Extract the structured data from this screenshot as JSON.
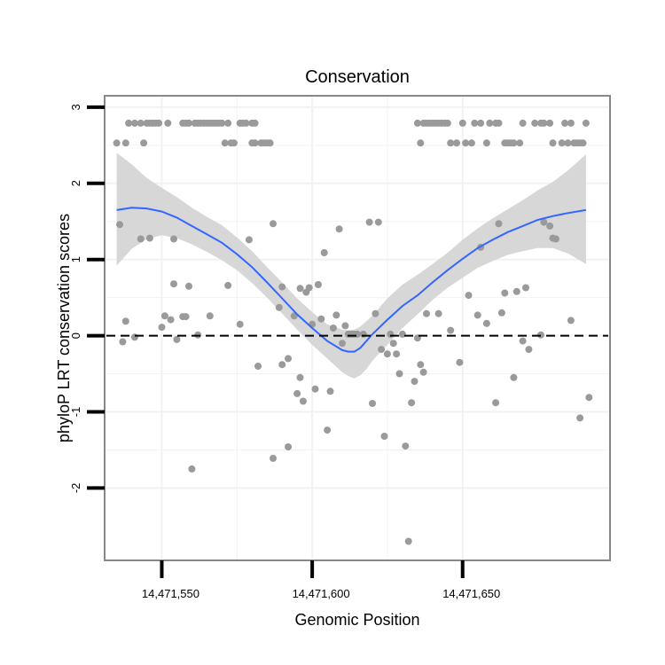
{
  "chart_data": {
    "type": "scatter",
    "title": "Conservation",
    "xlabel": "Genomic Position",
    "ylabel": "phyloP LRT conservation scores",
    "xlim": [
      14471531,
      14471699
    ],
    "ylim": [
      -2.95,
      3.15
    ],
    "x_ticks": [
      {
        "value": 14471550,
        "label": "14,471,550"
      },
      {
        "value": 14471600,
        "label": "14,471,600"
      },
      {
        "value": 14471650,
        "label": "14,471,650"
      }
    ],
    "y_ticks": [
      {
        "value": 3,
        "label": "3"
      },
      {
        "value": 2,
        "label": "2"
      },
      {
        "value": 1,
        "label": "1"
      },
      {
        "value": 0,
        "label": "0"
      },
      {
        "value": -1,
        "label": "-1"
      },
      {
        "value": -2,
        "label": "-2"
      }
    ],
    "grid": true,
    "reference_line": {
      "y": 0,
      "style": "dashed"
    },
    "colors": {
      "points": "#9a9a9a",
      "smooth": "#3366ff",
      "ribbon": "#d5d5d5",
      "panel_border": "#888888",
      "grid": "#f2f2f2"
    },
    "points": [
      [
        14471535,
        2.53
      ],
      [
        14471538,
        2.53
      ],
      [
        14471539,
        2.79
      ],
      [
        14471541,
        2.79
      ],
      [
        14471543,
        2.79
      ],
      [
        14471544,
        2.53
      ],
      [
        14471545,
        2.79
      ],
      [
        14471546,
        2.79
      ],
      [
        14471547,
        2.79
      ],
      [
        14471548,
        2.79
      ],
      [
        14471549,
        2.79
      ],
      [
        14471552,
        2.79
      ],
      [
        14471557,
        2.79
      ],
      [
        14471558,
        2.79
      ],
      [
        14471559,
        2.79
      ],
      [
        14471561,
        2.79
      ],
      [
        14471562,
        2.79
      ],
      [
        14471563,
        2.79
      ],
      [
        14471564,
        2.79
      ],
      [
        14471565,
        2.79
      ],
      [
        14471566,
        2.79
      ],
      [
        14471567,
        2.79
      ],
      [
        14471568,
        2.79
      ],
      [
        14471569,
        2.79
      ],
      [
        14471570,
        2.79
      ],
      [
        14471571,
        2.53
      ],
      [
        14471572,
        2.79
      ],
      [
        14471573,
        2.53
      ],
      [
        14471574,
        2.53
      ],
      [
        14471576,
        2.79
      ],
      [
        14471577,
        2.79
      ],
      [
        14471578,
        2.79
      ],
      [
        14471580,
        2.79
      ],
      [
        14471581,
        2.79
      ],
      [
        14471580,
        2.53
      ],
      [
        14471581,
        2.53
      ],
      [
        14471583,
        2.53
      ],
      [
        14471584,
        2.53
      ],
      [
        14471585,
        2.53
      ],
      [
        14471586,
        2.53
      ],
      [
        14471635,
        2.79
      ],
      [
        14471636,
        2.53
      ],
      [
        14471637,
        2.79
      ],
      [
        14471638,
        2.79
      ],
      [
        14471639,
        2.79
      ],
      [
        14471640,
        2.79
      ],
      [
        14471641,
        2.79
      ],
      [
        14471642,
        2.79
      ],
      [
        14471643,
        2.79
      ],
      [
        14471644,
        2.79
      ],
      [
        14471645,
        2.79
      ],
      [
        14471646,
        2.53
      ],
      [
        14471648,
        2.53
      ],
      [
        14471650,
        2.79
      ],
      [
        14471651,
        2.53
      ],
      [
        14471653,
        2.53
      ],
      [
        14471654,
        2.79
      ],
      [
        14471656,
        2.79
      ],
      [
        14471658,
        2.53
      ],
      [
        14471659,
        2.79
      ],
      [
        14471661,
        2.79
      ],
      [
        14471662,
        2.79
      ],
      [
        14471664,
        2.53
      ],
      [
        14471665,
        2.53
      ],
      [
        14471666,
        2.53
      ],
      [
        14471667,
        2.53
      ],
      [
        14471669,
        2.53
      ],
      [
        14471670,
        2.79
      ],
      [
        14471674,
        2.79
      ],
      [
        14471676,
        2.79
      ],
      [
        14471677,
        2.79
      ],
      [
        14471679,
        2.79
      ],
      [
        14471680,
        2.53
      ],
      [
        14471683,
        2.53
      ],
      [
        14471684,
        2.79
      ],
      [
        14471685,
        2.53
      ],
      [
        14471686,
        2.79
      ],
      [
        14471687,
        2.53
      ],
      [
        14471688,
        2.53
      ],
      [
        14471689,
        2.53
      ],
      [
        14471690,
        2.53
      ],
      [
        14471691,
        2.79
      ],
      [
        14471536,
        1.46
      ],
      [
        14471537,
        -0.08
      ],
      [
        14471538,
        0.19
      ],
      [
        14471541,
        -0.02
      ],
      [
        14471543,
        1.27
      ],
      [
        14471546,
        1.28
      ],
      [
        14471550,
        0.11
      ],
      [
        14471551,
        0.26
      ],
      [
        14471553,
        0.21
      ],
      [
        14471554,
        0.68
      ],
      [
        14471554,
        1.27
      ],
      [
        14471555,
        -0.05
      ],
      [
        14471557,
        0.25
      ],
      [
        14471558,
        0.25
      ],
      [
        14471559,
        0.65
      ],
      [
        14471560,
        -1.75
      ],
      [
        14471562,
        0.01
      ],
      [
        14471566,
        0.26
      ],
      [
        14471572,
        0.66
      ],
      [
        14471576,
        0.15
      ],
      [
        14471579,
        1.26
      ],
      [
        14471582,
        -0.4
      ],
      [
        14471587,
        1.47
      ],
      [
        14471587,
        -1.61
      ],
      [
        14471589,
        0.37
      ],
      [
        14471590,
        0.64
      ],
      [
        14471590,
        -0.38
      ],
      [
        14471592,
        -0.3
      ],
      [
        14471592,
        -1.46
      ],
      [
        14471594,
        0.26
      ],
      [
        14471595,
        -0.76
      ],
      [
        14471596,
        0.62
      ],
      [
        14471596,
        -0.55
      ],
      [
        14471597,
        -0.86
      ],
      [
        14471598,
        0.57
      ],
      [
        14471599,
        0.63
      ],
      [
        14471600,
        0.15
      ],
      [
        14471601,
        -0.7
      ],
      [
        14471602,
        0.67
      ],
      [
        14471603,
        0.22
      ],
      [
        14471604,
        1.09
      ],
      [
        14471605,
        -1.24
      ],
      [
        14471606,
        -0.73
      ],
      [
        14471607,
        0.1
      ],
      [
        14471608,
        0.27
      ],
      [
        14471609,
        1.4
      ],
      [
        14471610,
        -0.1
      ],
      [
        14471611,
        0.13
      ],
      [
        14471612,
        0.02
      ],
      [
        14471613,
        0.02
      ],
      [
        14471614,
        0.02
      ],
      [
        14471615,
        0.02
      ],
      [
        14471617,
        0.02
      ],
      [
        14471619,
        1.49
      ],
      [
        14471620,
        -0.89
      ],
      [
        14471621,
        0.29
      ],
      [
        14471622,
        1.49
      ],
      [
        14471623,
        -0.18
      ],
      [
        14471624,
        -1.32
      ],
      [
        14471625,
        -0.24
      ],
      [
        14471626,
        0.02
      ],
      [
        14471627,
        -0.1
      ],
      [
        14471628,
        -0.24
      ],
      [
        14471629,
        -0.5
      ],
      [
        14471630,
        0.02
      ],
      [
        14471631,
        -1.45
      ],
      [
        14471632,
        -2.7
      ],
      [
        14471633,
        -0.88
      ],
      [
        14471634,
        -0.6
      ],
      [
        14471635,
        -0.03
      ],
      [
        14471636,
        -0.38
      ],
      [
        14471637,
        -0.48
      ],
      [
        14471638,
        0.29
      ],
      [
        14471642,
        0.29
      ],
      [
        14471646,
        0.07
      ],
      [
        14471649,
        -0.35
      ],
      [
        14471652,
        0.53
      ],
      [
        14471655,
        0.27
      ],
      [
        14471656,
        1.16
      ],
      [
        14471658,
        0.16
      ],
      [
        14471661,
        -0.88
      ],
      [
        14471662,
        1.47
      ],
      [
        14471663,
        0.3
      ],
      [
        14471664,
        0.56
      ],
      [
        14471667,
        -0.55
      ],
      [
        14471668,
        0.58
      ],
      [
        14471670,
        -0.07
      ],
      [
        14471671,
        0.63
      ],
      [
        14471672,
        -0.18
      ],
      [
        14471676,
        0.01
      ],
      [
        14471677,
        1.49
      ],
      [
        14471679,
        1.44
      ],
      [
        14471680,
        1.28
      ],
      [
        14471681,
        1.27
      ],
      [
        14471686,
        0.2
      ],
      [
        14471689,
        -1.08
      ],
      [
        14471692,
        -0.81
      ]
    ],
    "smooth_x": [
      14471535,
      14471540,
      14471545,
      14471550,
      14471555,
      14471560,
      14471565,
      14471570,
      14471575,
      14471580,
      14471585,
      14471590,
      14471595,
      14471600,
      14471605,
      14471610,
      14471612,
      14471614,
      14471616,
      14471618,
      14471620,
      14471625,
      14471630,
      14471635,
      14471640,
      14471645,
      14471650,
      14471655,
      14471660,
      14471665,
      14471670,
      14471675,
      14471680,
      14471685,
      14471691
    ],
    "smooth_y": [
      1.65,
      1.68,
      1.67,
      1.63,
      1.55,
      1.44,
      1.33,
      1.22,
      1.07,
      0.9,
      0.7,
      0.49,
      0.28,
      0.1,
      -0.07,
      -0.19,
      -0.21,
      -0.21,
      -0.16,
      -0.07,
      0.02,
      0.21,
      0.39,
      0.53,
      0.7,
      0.86,
      1.01,
      1.15,
      1.26,
      1.36,
      1.44,
      1.52,
      1.57,
      1.61,
      1.65
    ],
    "ribbon_lower": [
      0.92,
      1.14,
      1.27,
      1.32,
      1.28,
      1.2,
      1.1,
      0.99,
      0.86,
      0.69,
      0.5,
      0.29,
      0.08,
      -0.12,
      -0.3,
      -0.48,
      -0.53,
      -0.56,
      -0.52,
      -0.44,
      -0.33,
      -0.12,
      0.1,
      0.28,
      0.47,
      0.63,
      0.76,
      0.89,
      0.98,
      1.06,
      1.11,
      1.15,
      1.15,
      1.08,
      0.94
    ],
    "ribbon_upper": [
      2.4,
      2.25,
      2.07,
      1.94,
      1.82,
      1.68,
      1.56,
      1.45,
      1.29,
      1.11,
      0.9,
      0.7,
      0.49,
      0.31,
      0.15,
      0.08,
      0.07,
      0.08,
      0.12,
      0.19,
      0.26,
      0.49,
      0.67,
      0.8,
      0.94,
      1.09,
      1.26,
      1.41,
      1.54,
      1.66,
      1.78,
      1.91,
      2.02,
      2.17,
      2.38
    ]
  }
}
